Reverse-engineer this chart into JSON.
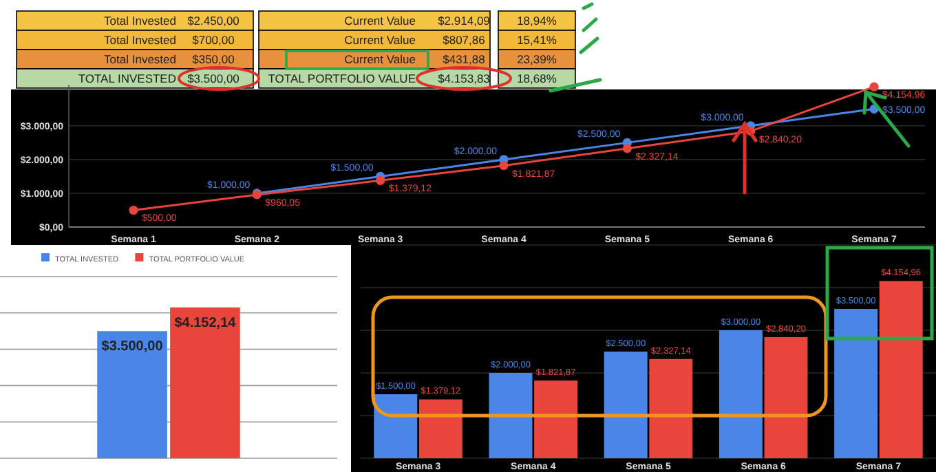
{
  "chart_data": [
    {
      "type": "other",
      "annotations": [
        "Total Invested",
        "$2.450,00",
        "Current Value",
        "$2.914,09",
        "18,94%",
        "Total Invested",
        "$700,00",
        "Current Value",
        "$807,86",
        "15,41%",
        "Total Invested",
        "$350,00",
        "Current Value",
        "$431,88",
        "23,39%",
        "TOTAL INVESTED",
        "$3.500,00",
        "TOTAL PORTFOLIO VALUE",
        "$4.153,83",
        "18,68%"
      ],
      "colors": [
        "#f6c445",
        "#f2b83c",
        "#e8913c",
        "#b7d9a6"
      ]
    },
    {
      "type": "line",
      "categories": [
        "Semana 1",
        "Semana 2",
        "Semana 3",
        "Semana 4",
        "Semana 5",
        "Semana 6",
        "Semana 7"
      ],
      "ylim": [
        0,
        4200
      ],
      "yticks": [
        {
          "value": 0,
          "label": "$0,00"
        },
        {
          "value": 1000,
          "label": "$1.000,00"
        },
        {
          "value": 2000,
          "label": "$2.000,00"
        },
        {
          "value": 3000,
          "label": "$3.000,00"
        }
      ],
      "grid": "y",
      "marker": "circle",
      "series": [
        {
          "color": "#4a86e8",
          "values": [
            null,
            1000,
            1500,
            2000,
            2500,
            3000,
            3500
          ],
          "value_labels": [
            null,
            "$1.000,00",
            "$1.500,00",
            "$2.000,00",
            "$2.500,00",
            "$3.000,00",
            "$3.500,00"
          ]
        },
        {
          "color": "#e8453c",
          "values": [
            500,
            960.05,
            1379.12,
            1821.87,
            2327.14,
            2840.2,
            4154.96
          ],
          "value_labels": [
            "$500,00",
            "$960,05",
            "$1.379,12",
            "$1.821,87",
            "$2.327,14",
            "$2.840,20",
            "$4.154,96"
          ]
        }
      ]
    },
    {
      "type": "bar",
      "categories": [
        null
      ],
      "ylim": [
        0,
        5000
      ],
      "yticks": [
        {
          "value": 0,
          "label": null
        },
        {
          "value": 1000,
          "label": null
        },
        {
          "value": 2000,
          "label": null
        },
        {
          "value": 3000,
          "label": null
        },
        {
          "value": 4000,
          "label": null
        },
        {
          "value": 5000,
          "label": null
        }
      ],
      "grid": "y",
      "tick_labels": false,
      "legend": "top",
      "series": [
        {
          "name": "TOTAL INVESTED",
          "color": "#4a86e8",
          "values": [
            3500
          ],
          "value_labels": [
            "$3.500,00"
          ]
        },
        {
          "name": "TOTAL PORTFOLIO VALUE",
          "color": "#e8453c",
          "values": [
            4152.14
          ],
          "value_labels": [
            "$4.152,14"
          ]
        }
      ]
    },
    {
      "type": "bar",
      "categories": [
        "Semana 3",
        "Semana 4",
        "Semana 5",
        "Semana 6",
        "Semana 7"
      ],
      "ylim": [
        0,
        5000
      ],
      "yticks": [
        {
          "value": 0,
          "label": null
        },
        {
          "value": 1000,
          "label": null
        },
        {
          "value": 2000,
          "label": null
        },
        {
          "value": 3000,
          "label": null
        },
        {
          "value": 4000,
          "label": null
        },
        {
          "value": 5000,
          "label": null
        }
      ],
      "grid": "y",
      "tick_labels": "x",
      "series": [
        {
          "color": "#4a86e8",
          "values": [
            1500,
            2000,
            2500,
            3000,
            3500
          ],
          "value_labels": [
            "$1.500,00",
            "$2.000,00",
            "$2.500,00",
            "$3.000,00",
            "$3.500,00"
          ]
        },
        {
          "color": "#e8453c",
          "values": [
            1379.12,
            1821.87,
            2327.14,
            2840.2,
            4154.96
          ],
          "value_labels": [
            "$1.379,12",
            "$1.821,87",
            "$2.327,14",
            "$2.840,20",
            "$4.154,96"
          ]
        }
      ]
    }
  ]
}
